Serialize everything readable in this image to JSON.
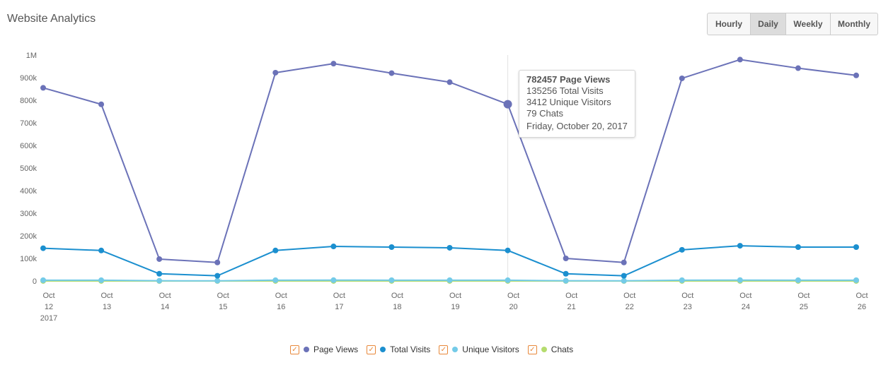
{
  "header": {
    "title": "Website Analytics"
  },
  "range_buttons": [
    {
      "label": "Hourly",
      "active": false
    },
    {
      "label": "Daily",
      "active": true
    },
    {
      "label": "Weekly",
      "active": false
    },
    {
      "label": "Monthly",
      "active": false
    }
  ],
  "tooltip": {
    "page_views": "782457 Page Views",
    "total_visits": "135256 Total Visits",
    "unique_visitors": "3412 Unique Visitors",
    "chats": "79 Chats",
    "date": "Friday, October 20, 2017"
  },
  "legend": [
    {
      "label": "Page Views",
      "color": "#6b72b8",
      "checked": true,
      "checkbox": true
    },
    {
      "label": "Total Visits",
      "color": "#1b8fcf",
      "checked": true,
      "checkbox": true
    },
    {
      "label": "Unique Visitors",
      "color": "#74cbe8",
      "checked": true,
      "checkbox": true
    },
    {
      "label": "Chats",
      "color": "#b5dc6e",
      "checked": true,
      "checkbox": true
    }
  ],
  "chart_data": {
    "type": "line",
    "categories": [
      "Oct 12 2017",
      "Oct 13",
      "Oct 14",
      "Oct 15",
      "Oct 16",
      "Oct 17",
      "Oct 18",
      "Oct 19",
      "Oct 20",
      "Oct 21",
      "Oct 22",
      "Oct 23",
      "Oct 24",
      "Oct 25",
      "Oct 26"
    ],
    "x_tick_labels": [
      [
        "Oct",
        "12",
        "2017"
      ],
      [
        "Oct",
        "13"
      ],
      [
        "Oct",
        "14"
      ],
      [
        "Oct",
        "15"
      ],
      [
        "Oct",
        "16"
      ],
      [
        "Oct",
        "17"
      ],
      [
        "Oct",
        "18"
      ],
      [
        "Oct",
        "19"
      ],
      [
        "Oct",
        "20"
      ],
      [
        "Oct",
        "21"
      ],
      [
        "Oct",
        "22"
      ],
      [
        "Oct",
        "23"
      ],
      [
        "Oct",
        "24"
      ],
      [
        "Oct",
        "25"
      ],
      [
        "Oct",
        "26"
      ]
    ],
    "y_ticks": [
      0,
      100000,
      200000,
      300000,
      400000,
      500000,
      600000,
      700000,
      800000,
      900000,
      1000000
    ],
    "y_tick_labels": [
      "0",
      "100k",
      "200k",
      "300k",
      "400k",
      "500k",
      "600k",
      "700k",
      "800k",
      "900k",
      "1M"
    ],
    "ylim": [
      0,
      1000000
    ],
    "highlight_index": 8,
    "series": [
      {
        "name": "Page Views",
        "color": "#6b72b8",
        "values": [
          855000,
          782000,
          97000,
          82000,
          922000,
          962000,
          920000,
          880000,
          782457,
          100000,
          82000,
          897000,
          980000,
          942000,
          910000
        ]
      },
      {
        "name": "Total Visits",
        "color": "#1b8fcf",
        "values": [
          145000,
          135000,
          32000,
          23000,
          135000,
          153000,
          150000,
          147000,
          135256,
          32000,
          23000,
          138000,
          156000,
          150000,
          150000
        ]
      },
      {
        "name": "Unique Visitors",
        "color": "#74cbe8",
        "values": [
          3500,
          3400,
          1000,
          900,
          3600,
          3800,
          3700,
          3600,
          3412,
          1000,
          900,
          3500,
          3900,
          3700,
          3600
        ]
      },
      {
        "name": "Chats",
        "color": "#b5dc6e",
        "values": [
          80,
          78,
          20,
          18,
          82,
          85,
          83,
          81,
          79,
          22,
          19,
          80,
          86,
          84,
          82
        ]
      }
    ]
  }
}
